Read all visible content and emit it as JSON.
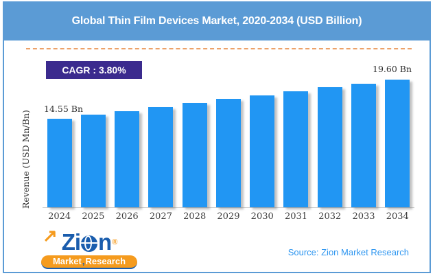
{
  "header": {
    "title": "Global Thin Film Devices Market, 2020-2034 (USD Billion)",
    "bg_color": "#5b9bd5",
    "text_color": "#ffffff"
  },
  "divider": {
    "color": "#eda269",
    "style": "dashed"
  },
  "cagr_badge": {
    "label": "CAGR : 3.80%",
    "bg_color": "#3b2b8e",
    "text_color": "#ffffff"
  },
  "chart_data": {
    "type": "bar",
    "title": "Global Thin Film Devices Market, 2020-2034 (USD Billion)",
    "categories": [
      "2024",
      "2025",
      "2026",
      "2027",
      "2028",
      "2029",
      "2030",
      "2031",
      "2032",
      "2033",
      "2034"
    ],
    "values": [
      14.55,
      15.06,
      15.56,
      16.07,
      16.57,
      17.08,
      17.58,
      18.09,
      18.59,
      19.1,
      19.6
    ],
    "first_bar_label": "14.55 Bn",
    "last_bar_label": "19.60 Bn",
    "xlabel": "",
    "ylabel": "Revenue (USD Mn/Bn)",
    "unit": "USD Bn",
    "bar_color": "#2196f3",
    "grid": false,
    "legend": "none",
    "ylim_note": "only first and last bars carry data labels; intermediate values estimated from bar heights"
  },
  "footer": {
    "source": {
      "text": "Source: Zion Market Research",
      "color": "#2e96f0"
    },
    "logo": {
      "brand_left": "Zi",
      "brand_right": "n",
      "registered": "®",
      "arrow_glyph": "↗",
      "tagline_market": "Market",
      "tagline_separator": ",",
      "tagline_research": "Research",
      "blue": "#1a5dad",
      "orange": "#f59b1e"
    }
  }
}
